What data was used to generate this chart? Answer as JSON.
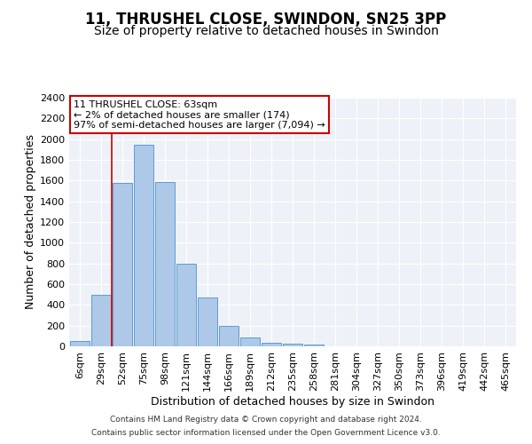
{
  "title": "11, THRUSHEL CLOSE, SWINDON, SN25 3PP",
  "subtitle": "Size of property relative to detached houses in Swindon",
  "xlabel": "Distribution of detached houses by size in Swindon",
  "ylabel": "Number of detached properties",
  "bar_labels": [
    "6sqm",
    "29sqm",
    "52sqm",
    "75sqm",
    "98sqm",
    "121sqm",
    "144sqm",
    "166sqm",
    "189sqm",
    "212sqm",
    "235sqm",
    "258sqm",
    "281sqm",
    "304sqm",
    "327sqm",
    "350sqm",
    "373sqm",
    "396sqm",
    "419sqm",
    "442sqm",
    "465sqm"
  ],
  "bar_values": [
    55,
    500,
    1580,
    1950,
    1590,
    800,
    475,
    195,
    90,
    35,
    30,
    20,
    0,
    0,
    0,
    0,
    0,
    0,
    0,
    0,
    0
  ],
  "bar_color": "#aec8e8",
  "bar_edge_color": "#5a9fd4",
  "vline_color": "#cc0000",
  "vline_x_index": 1.5,
  "annotation_line1": "11 THRUSHEL CLOSE: 63sqm",
  "annotation_line2": "← 2% of detached houses are smaller (174)",
  "annotation_line3": "97% of semi-detached houses are larger (7,094) →",
  "annotation_box_color": "#ffffff",
  "annotation_box_edge": "#cc0000",
  "ylim": [
    0,
    2400
  ],
  "yticks": [
    0,
    200,
    400,
    600,
    800,
    1000,
    1200,
    1400,
    1600,
    1800,
    2000,
    2200,
    2400
  ],
  "title_fontsize": 12,
  "subtitle_fontsize": 10,
  "xlabel_fontsize": 9,
  "ylabel_fontsize": 9,
  "tick_fontsize": 8,
  "annot_fontsize": 8,
  "footer_line1": "Contains HM Land Registry data © Crown copyright and database right 2024.",
  "footer_line2": "Contains public sector information licensed under the Open Government Licence v3.0.",
  "plot_bg_color": "#eef2f8"
}
